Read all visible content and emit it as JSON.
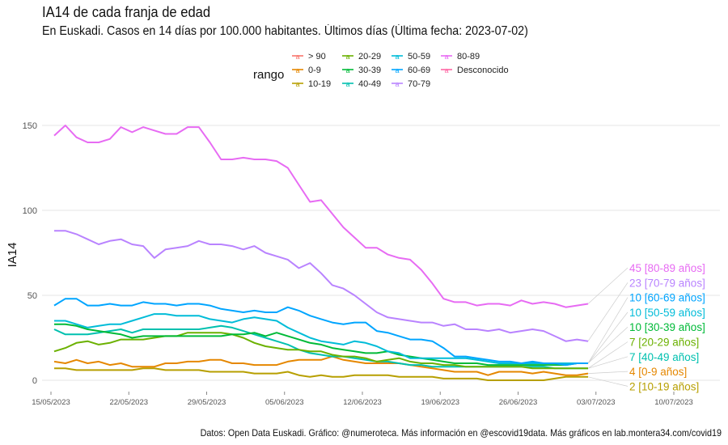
{
  "header": {
    "title": "IA14 de cada franja de edad",
    "subtitle": "En Euskadi. Casos en 14 días por 100.000 habitantes. Últimos días   (Última fecha: 2023-07-02)"
  },
  "caption": "Datos: Open Data Euskadi. Gráfico: @numeroteca. Más información en @escovid19data.  Más gráficos en lab.montera34.com/covid19",
  "chart_data": {
    "type": "line",
    "title": "IA14 de cada franja de edad",
    "subtitle": "En Euskadi. Casos en 14 días por 100.000 habitantes. Últimos días   (Última fecha: 2023-07-02)",
    "xlabel": "",
    "ylabel": "IA14",
    "ylim": [
      -5,
      160
    ],
    "yticks": [
      0,
      50,
      100,
      150
    ],
    "ytick_labels": [
      "0",
      "50",
      "100",
      "150"
    ],
    "x_start": "2023-05-15",
    "x_end": "2023-07-02",
    "xlim_days": [
      -1,
      59
    ],
    "xticks_days": [
      0,
      7,
      14,
      21,
      28,
      35,
      42,
      49,
      56
    ],
    "xtick_labels": [
      "15/05/2023",
      "22/05/2023",
      "29/05/2023",
      "05/06/2023",
      "12/06/2023",
      "19/06/2023",
      "26/06/2023",
      "03/07/2023",
      "10/07/2023"
    ],
    "grid": true,
    "legend_title": "rango",
    "legend_position": "top",
    "legend": [
      {
        "name": "> 90",
        "color": "#F8766D"
      },
      {
        "name": "0-9",
        "color": "#E58700"
      },
      {
        "name": "10-19",
        "color": "#B79F00"
      },
      {
        "name": "20-29",
        "color": "#6BB100"
      },
      {
        "name": "30-39",
        "color": "#00BA38"
      },
      {
        "name": "40-49",
        "color": "#00C0AF"
      },
      {
        "name": "50-59",
        "color": "#00BCD8"
      },
      {
        "name": "60-69",
        "color": "#00A5FF"
      },
      {
        "name": "70-79",
        "color": "#B983FF"
      },
      {
        "name": "80-89",
        "color": "#E76BF3"
      },
      {
        "name": "Desconocido",
        "color": "#FF67A4"
      }
    ],
    "series": [
      {
        "name": "80-89",
        "color": "#E76BF3",
        "end_label": "45 [80-89 años]",
        "values": [
          144,
          150,
          143,
          140,
          140,
          142,
          149,
          146,
          149,
          147,
          145,
          145,
          149,
          149,
          140,
          130,
          130,
          131,
          130,
          130,
          129,
          125,
          115,
          105,
          106,
          98,
          90,
          84,
          78,
          78,
          74,
          72,
          71,
          65,
          57,
          48,
          46,
          46,
          44,
          45,
          45,
          44,
          47,
          45,
          46,
          45,
          43,
          44,
          45
        ]
      },
      {
        "name": "70-79",
        "color": "#B983FF",
        "end_label": "23 [70-79 años]",
        "values": [
          88,
          88,
          86,
          83,
          80,
          82,
          83,
          80,
          79,
          72,
          77,
          78,
          79,
          82,
          80,
          80,
          79,
          77,
          79,
          75,
          73,
          71,
          66,
          69,
          63,
          56,
          54,
          50,
          45,
          40,
          37,
          36,
          35,
          34,
          34,
          32,
          33,
          30,
          30,
          29,
          30,
          28,
          29,
          30,
          29,
          26,
          23,
          24,
          23
        ]
      },
      {
        "name": "60-69",
        "color": "#00A5FF",
        "end_label": "10 [60-69 años]",
        "values": [
          44,
          48,
          48,
          44,
          44,
          45,
          44,
          44,
          46,
          45,
          45,
          44,
          45,
          45,
          44,
          42,
          41,
          40,
          41,
          40,
          40,
          43,
          41,
          38,
          36,
          34,
          33,
          34,
          34,
          29,
          28,
          26,
          24,
          24,
          23,
          19,
          14,
          14,
          13,
          12,
          11,
          11,
          10,
          11,
          10,
          10,
          9,
          10,
          10
        ]
      },
      {
        "name": "50-59",
        "color": "#00BCD8",
        "end_label": "10 [50-59 años]",
        "values": [
          35,
          35,
          33,
          31,
          32,
          33,
          33,
          35,
          37,
          39,
          39,
          38,
          38,
          38,
          36,
          35,
          34,
          36,
          37,
          36,
          35,
          31,
          28,
          25,
          23,
          22,
          21,
          23,
          22,
          20,
          17,
          16,
          13,
          13,
          13,
          13,
          13,
          13,
          12,
          11,
          10,
          10,
          10,
          10,
          10,
          10,
          10,
          10,
          10
        ]
      },
      {
        "name": "30-39",
        "color": "#00BA38",
        "end_label": "10 [30-39 años]",
        "values": [
          33,
          33,
          32,
          30,
          29,
          28,
          27,
          25,
          26,
          26,
          26,
          26,
          26,
          26,
          26,
          26,
          27,
          27,
          28,
          26,
          28,
          26,
          24,
          22,
          21,
          19,
          18,
          17,
          16,
          16,
          17,
          15,
          14,
          13,
          12,
          11,
          10,
          10,
          10,
          9,
          9,
          9,
          9,
          9,
          9,
          9,
          9,
          10,
          10
        ]
      },
      {
        "name": "20-29",
        "color": "#6BB100",
        "end_label": "7 [20-29 años]",
        "values": [
          17,
          19,
          22,
          23,
          21,
          22,
          24,
          24,
          24,
          25,
          26,
          26,
          28,
          28,
          28,
          28,
          27,
          25,
          22,
          20,
          19,
          18,
          18,
          17,
          17,
          15,
          14,
          14,
          13,
          11,
          12,
          13,
          11,
          10,
          10,
          9,
          9,
          8,
          8,
          8,
          8,
          8,
          8,
          7,
          7,
          7,
          7,
          7,
          7
        ]
      },
      {
        "name": "40-49",
        "color": "#00C0AF",
        "end_label": "7 [40-49 años]",
        "values": [
          30,
          27,
          27,
          27,
          28,
          29,
          30,
          28,
          30,
          30,
          30,
          30,
          30,
          30,
          31,
          32,
          31,
          29,
          27,
          25,
          23,
          21,
          18,
          16,
          15,
          14,
          14,
          13,
          12,
          11,
          11,
          10,
          9,
          9,
          8,
          8,
          8,
          8,
          8,
          8,
          8,
          8,
          8,
          8,
          8,
          7,
          7,
          7,
          7
        ]
      },
      {
        "name": "0-9",
        "color": "#E58700",
        "end_label": "4 [0-9 años]",
        "values": [
          11,
          10,
          12,
          10,
          11,
          9,
          10,
          8,
          8,
          8,
          10,
          10,
          11,
          11,
          12,
          12,
          10,
          10,
          9,
          9,
          9,
          11,
          12,
          12,
          12,
          14,
          12,
          11,
          10,
          10,
          10,
          10,
          9,
          8,
          7,
          6,
          5,
          5,
          5,
          3,
          5,
          5,
          5,
          4,
          5,
          4,
          3,
          3,
          4
        ]
      },
      {
        "name": "10-19",
        "color": "#B79F00",
        "end_label": "2 [10-19 años]",
        "values": [
          7,
          7,
          6,
          6,
          6,
          6,
          6,
          6,
          7,
          7,
          6,
          6,
          6,
          6,
          5,
          5,
          5,
          5,
          4,
          4,
          4,
          5,
          3,
          2,
          3,
          2,
          2,
          3,
          3,
          3,
          3,
          2,
          2,
          2,
          2,
          1,
          1,
          1,
          1,
          0,
          0,
          0,
          0,
          0,
          0,
          1,
          2,
          2,
          2
        ]
      }
    ]
  }
}
